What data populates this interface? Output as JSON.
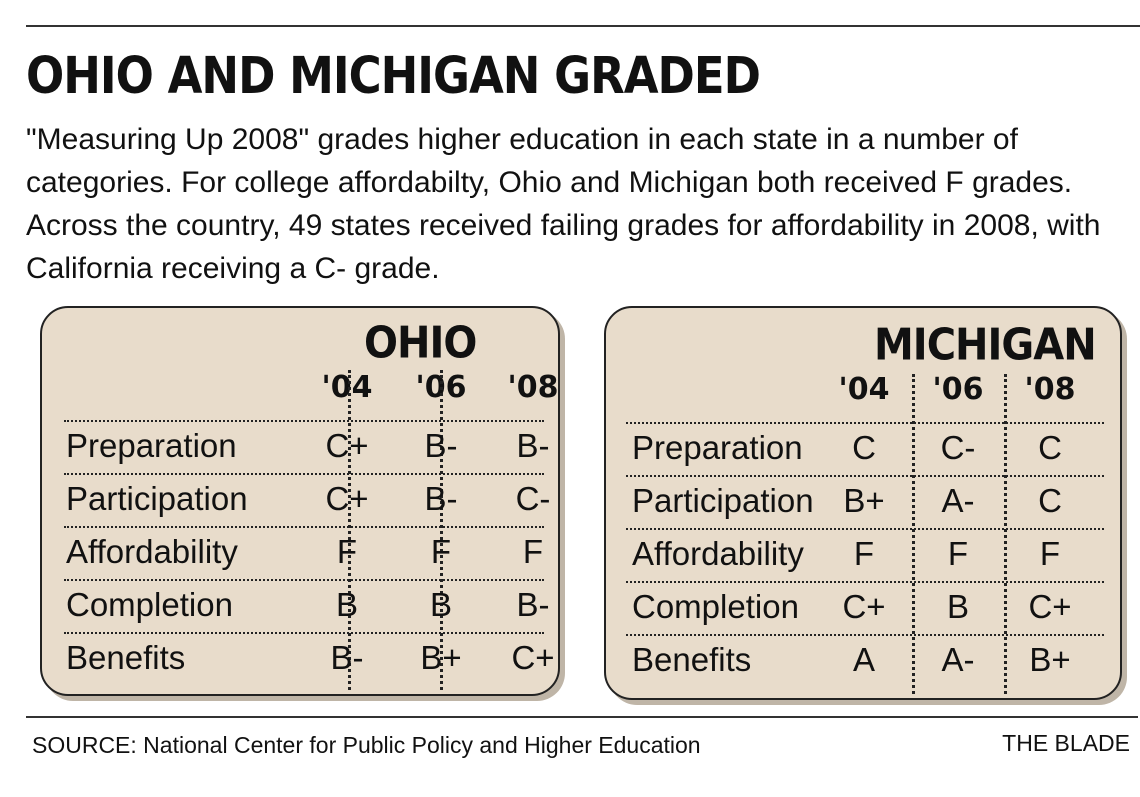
{
  "title": "OHIO AND MICHIGAN GRADED",
  "intro": "\"Measuring Up 2008\" grades higher education in each state in a number of categories. For college affordabilty, Ohio and Michigan both received F grades. Across the country, 49 states received failing grades for affordability in 2008, with California receiving a C- grade.",
  "source": "SOURCE: National Center for Public Policy and Higher Education",
  "credit": "THE BLADE",
  "chart_data": [
    {
      "type": "table",
      "title": "OHIO",
      "columns": [
        "'04",
        "'06",
        "'08"
      ],
      "rows": [
        {
          "category": "Preparation",
          "grades": [
            "C+",
            "B-",
            "B-"
          ]
        },
        {
          "category": "Participation",
          "grades": [
            "C+",
            "B-",
            "C-"
          ]
        },
        {
          "category": "Affordability",
          "grades": [
            "F",
            "F",
            "F"
          ]
        },
        {
          "category": "Completion",
          "grades": [
            "B",
            "B",
            "B-"
          ]
        },
        {
          "category": "Benefits",
          "grades": [
            "B-",
            "B+",
            "C+"
          ]
        }
      ]
    },
    {
      "type": "table",
      "title": "MICHIGAN",
      "columns": [
        "'04",
        "'06",
        "'08"
      ],
      "rows": [
        {
          "category": "Preparation",
          "grades": [
            "C",
            "C-",
            "C"
          ]
        },
        {
          "category": "Participation",
          "grades": [
            "B+",
            "A-",
            "C"
          ]
        },
        {
          "category": "Affordability",
          "grades": [
            "F",
            "F",
            "F"
          ]
        },
        {
          "category": "Completion",
          "grades": [
            "C+",
            "B",
            "C+"
          ]
        },
        {
          "category": "Benefits",
          "grades": [
            "A",
            "A-",
            "B+"
          ]
        }
      ]
    }
  ]
}
